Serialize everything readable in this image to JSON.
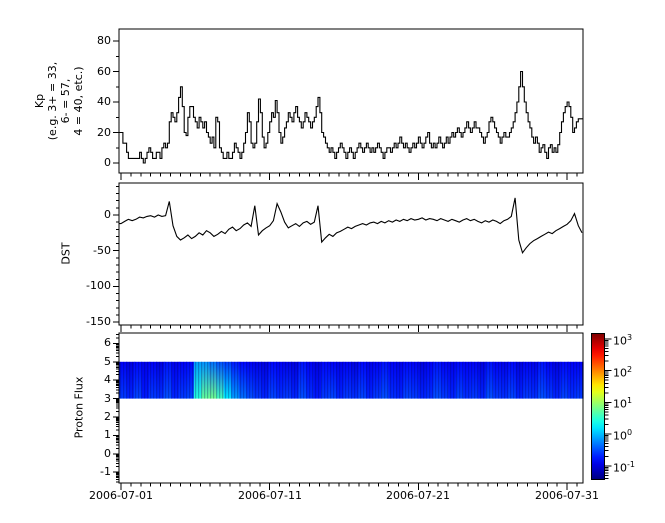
{
  "figure": {
    "background": "#ffffff",
    "frame_color": "#000000",
    "line_color": "#000000"
  },
  "xaxis": {
    "tick_labels": [
      "2006-07-01",
      "2006-07-11",
      "2006-07-21",
      "2006-07-31"
    ],
    "tick_days": [
      0,
      10,
      20,
      30
    ],
    "minor_interval_days": 0.6667,
    "range_days": [
      -0.13,
      31.07
    ]
  },
  "chart_data": [
    {
      "type": "line",
      "name": "kp_index",
      "style": "steps",
      "ylabel_lines": [
        "Kp",
        "(e.g. 3+ = 33,",
        "6- = 57,",
        "4 = 40, etc.)"
      ],
      "ylim": [
        -6.5,
        88
      ],
      "yticks": [
        0,
        20,
        40,
        60,
        80
      ],
      "yminor_step": 10,
      "sample_hours": 3,
      "values": [
        20,
        13,
        13,
        7,
        3,
        3,
        3,
        3,
        3,
        3,
        7,
        3,
        0,
        3,
        7,
        10,
        7,
        3,
        3,
        7,
        7,
        3,
        10,
        13,
        10,
        13,
        27,
        33,
        30,
        27,
        33,
        43,
        50,
        37,
        20,
        18,
        30,
        37,
        37,
        30,
        27,
        23,
        30,
        27,
        23,
        27,
        20,
        17,
        13,
        17,
        10,
        30,
        27,
        10,
        7,
        3,
        3,
        7,
        3,
        3,
        7,
        13,
        10,
        7,
        3,
        7,
        13,
        20,
        33,
        27,
        13,
        10,
        13,
        27,
        42,
        33,
        17,
        10,
        13,
        20,
        27,
        33,
        30,
        41,
        33,
        20,
        13,
        17,
        23,
        27,
        33,
        30,
        27,
        33,
        37,
        30,
        27,
        23,
        27,
        33,
        30,
        27,
        23,
        27,
        30,
        37,
        43,
        33,
        20,
        17,
        13,
        10,
        7,
        10,
        7,
        3,
        7,
        10,
        13,
        10,
        7,
        3,
        7,
        10,
        7,
        3,
        7,
        10,
        13,
        10,
        7,
        10,
        13,
        10,
        7,
        10,
        7,
        10,
        13,
        10,
        7,
        3,
        7,
        10,
        10,
        7,
        10,
        13,
        10,
        13,
        17,
        13,
        10,
        13,
        10,
        7,
        10,
        13,
        10,
        13,
        17,
        13,
        10,
        13,
        17,
        20,
        13,
        10,
        13,
        10,
        13,
        17,
        13,
        10,
        13,
        17,
        13,
        17,
        20,
        17,
        20,
        23,
        20,
        17,
        20,
        23,
        27,
        23,
        20,
        23,
        27,
        23,
        23,
        20,
        17,
        13,
        17,
        20,
        27,
        30,
        27,
        23,
        20,
        17,
        13,
        17,
        20,
        17,
        17,
        20,
        23,
        27,
        33,
        40,
        50,
        60,
        50,
        40,
        33,
        27,
        23,
        17,
        13,
        17,
        13,
        7,
        10,
        12,
        7,
        3,
        10,
        12,
        7,
        10,
        7,
        12,
        20,
        27,
        33,
        37,
        40,
        37,
        30,
        20,
        23,
        27,
        29,
        29
      ]
    },
    {
      "type": "line",
      "name": "dst",
      "style": "linear",
      "ylabel_lines": [
        "DST"
      ],
      "ylim": [
        -154,
        45
      ],
      "yticks": [
        0,
        -50,
        -100,
        -150
      ],
      "yminor_step": 10,
      "sample_hours": 6,
      "values": [
        -12,
        -9,
        -6,
        -8,
        -6,
        -3,
        -4,
        -2,
        -1,
        -3,
        0,
        -2,
        -1,
        19,
        -15,
        -30,
        -35,
        -32,
        -28,
        -33,
        -30,
        -25,
        -28,
        -22,
        -25,
        -30,
        -27,
        -23,
        -26,
        -20,
        -17,
        -22,
        -19,
        -14,
        -11,
        -16,
        13,
        -28,
        -22,
        -18,
        -15,
        -8,
        16,
        4,
        -10,
        -18,
        -15,
        -12,
        -16,
        -11,
        -9,
        -13,
        -10,
        13,
        -38,
        -32,
        -27,
        -30,
        -25,
        -23,
        -20,
        -17,
        -19,
        -16,
        -14,
        -12,
        -14,
        -11,
        -10,
        -12,
        -9,
        -11,
        -8,
        -10,
        -7,
        -9,
        -6,
        -8,
        -5,
        -7,
        -6,
        -4,
        -7,
        -5,
        -6,
        -8,
        -5,
        -7,
        -9,
        -6,
        -8,
        -10,
        -7,
        -5,
        -8,
        -6,
        -9,
        -11,
        -8,
        -10,
        -7,
        -9,
        -12,
        -8,
        -6,
        -2,
        24,
        -35,
        -53,
        -46,
        -40,
        -36,
        -33,
        -30,
        -27,
        -24,
        -26,
        -22,
        -19,
        -16,
        -13,
        -8,
        2,
        -15,
        -25
      ]
    },
    {
      "type": "heatmap",
      "name": "proton_flux",
      "ylabel_lines": [
        "Proton Flux"
      ],
      "ylim": [
        -1.63,
        6.52
      ],
      "yticks": [
        6,
        5,
        4,
        3,
        2,
        1,
        0,
        -1
      ],
      "band_y": [
        3,
        5
      ],
      "sample_hours": 12,
      "log_flux_low": [
        -0.6,
        -0.7,
        -0.55,
        -0.75,
        -0.6,
        -0.65,
        -0.5,
        -0.7,
        -0.6,
        -0.55,
        0.45,
        0.75,
        0.8,
        0.6,
        0.2,
        -0.15,
        -0.35,
        -0.5,
        -0.6,
        -0.7,
        -0.55,
        -0.65,
        -0.6,
        -0.7,
        -0.5,
        -0.65,
        -0.75,
        -0.6,
        -0.55,
        -0.7,
        -0.6,
        -0.65,
        -0.55,
        -0.7,
        -0.6,
        -0.5,
        -0.65,
        -0.7,
        -0.55,
        -0.6,
        -0.7,
        -0.65,
        -0.5,
        -0.6,
        -0.7,
        -0.55,
        -0.65,
        -0.6,
        -0.7,
        -0.5,
        -0.6,
        -0.65,
        -0.55,
        -0.7,
        -0.6,
        -0.65,
        -0.5,
        -0.6,
        -0.7,
        -0.55,
        -0.65,
        -0.6
      ],
      "log_flux_high": [
        -0.9,
        -1.0,
        -0.85,
        -0.95,
        -0.9,
        -1.0,
        -0.8,
        -0.95,
        -0.9,
        -0.85,
        -0.15,
        -0.2,
        -0.35,
        -0.5,
        -0.6,
        -0.75,
        -0.85,
        -0.9,
        -0.95,
        -1.0,
        -0.85,
        -0.9,
        -0.95,
        -1.0,
        -0.8,
        -0.9,
        -1.0,
        -0.85,
        -0.9,
        -0.95,
        -0.9,
        -1.0,
        -0.85,
        -0.95,
        -0.9,
        -0.8,
        -0.9,
        -0.95,
        -0.85,
        -0.9,
        -1.0,
        -0.9,
        -0.8,
        -0.9,
        -0.95,
        -0.85,
        -0.9,
        -0.9,
        -1.0,
        -0.8,
        -0.9,
        -0.95,
        -0.85,
        -1.0,
        -0.9,
        -0.95,
        -0.8,
        -0.9,
        -1.0,
        -0.85,
        -0.9,
        -0.9
      ],
      "colorbar": {
        "tick_exponents": [
          3,
          2,
          1,
          0,
          -1
        ],
        "log_range": [
          -1.45,
          3.19
        ],
        "colormap": "jet"
      }
    }
  ]
}
